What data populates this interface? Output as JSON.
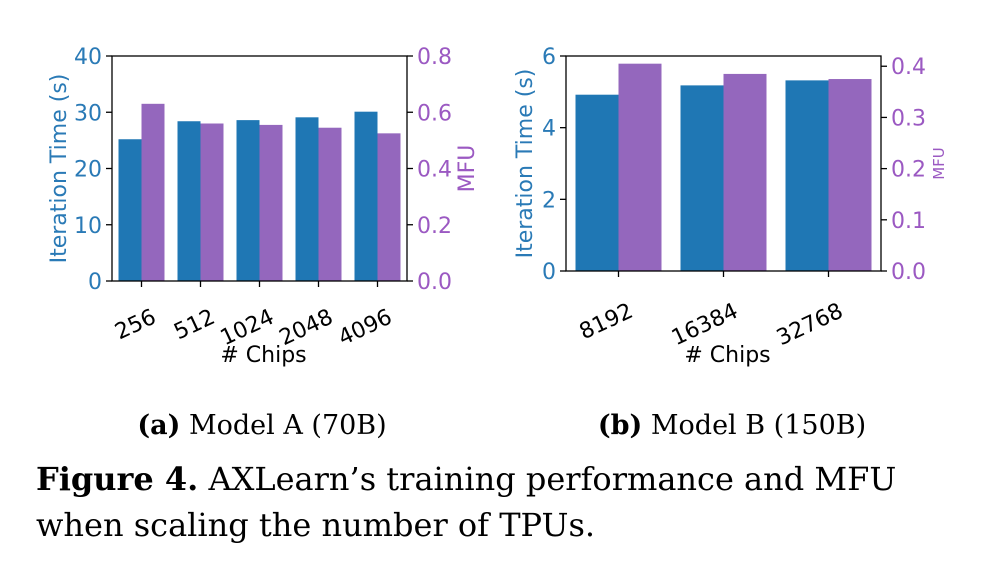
{
  "chart_data": [
    {
      "type": "bar",
      "categories": [
        "256",
        "512",
        "1024",
        "2048",
        "4096"
      ],
      "series": [
        {
          "name": "Iteration Time (s)",
          "axis": "left",
          "color": "#1f77b4",
          "values": [
            25.2,
            28.4,
            28.6,
            29.1,
            30.1
          ]
        },
        {
          "name": "MFU",
          "axis": "right",
          "color": "#9467bd",
          "values": [
            0.63,
            0.56,
            0.555,
            0.545,
            0.525
          ]
        }
      ],
      "xlabel": "# Chips",
      "ylabel": "Iteration Time (s)",
      "y2label": "MFU",
      "ylim": [
        0,
        40
      ],
      "y2lim": [
        0,
        0.8
      ],
      "yticks": [
        "0",
        "10",
        "20",
        "30",
        "40"
      ],
      "y2ticks": [
        "0.0",
        "0.2",
        "0.4",
        "0.6",
        "0.8"
      ],
      "caption_bold": "(a)",
      "caption_text": " Model A (70B)"
    },
    {
      "type": "bar",
      "categories": [
        "8192",
        "16384",
        "32768"
      ],
      "series": [
        {
          "name": "Iteration Time (s)",
          "axis": "left",
          "color": "#1f77b4",
          "values": [
            4.92,
            5.18,
            5.32
          ]
        },
        {
          "name": "MFU",
          "axis": "right",
          "color": "#9467bd",
          "values": [
            0.405,
            0.385,
            0.375
          ]
        }
      ],
      "xlabel": "# Chips",
      "ylabel": "Iteration Time (s)",
      "y2label": "MFU",
      "ylim": [
        0,
        6
      ],
      "y2lim": [
        0,
        0.42
      ],
      "yticks": [
        "0",
        "2",
        "4",
        "6"
      ],
      "y2ticks": [
        "0.0",
        "0.1",
        "0.2",
        "0.3",
        "0.4"
      ],
      "caption_bold": "(b)",
      "caption_text": " Model B (150B)"
    }
  ],
  "figure_caption": {
    "label": "Figure 4.",
    "text": " AXLearn’s training performance and MFU when scaling the number of TPUs."
  }
}
